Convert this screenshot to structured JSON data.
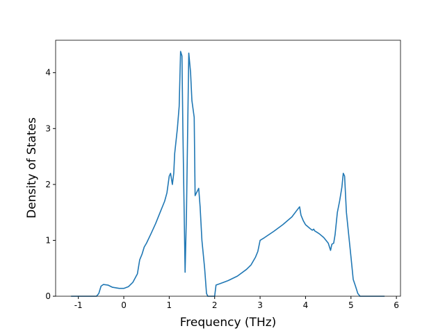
{
  "chart_data": {
    "type": "line",
    "x_label": "Frequency (THz)",
    "y_label": "Density of States",
    "xlim": [
      -1.5,
      6.09
    ],
    "ylim": [
      0,
      4.58
    ],
    "xticks": [
      -1,
      0,
      1,
      2,
      3,
      4,
      5,
      6
    ],
    "yticks": [
      0,
      1,
      2,
      3,
      4
    ],
    "series": [
      {
        "color": "#1f77b4",
        "x": [
          -1.16,
          -0.6,
          -0.55,
          -0.5,
          -0.45,
          -0.35,
          -0.25,
          -0.1,
          0,
          0.1,
          0.2,
          0.3,
          0.35,
          0.4,
          0.45,
          0.5,
          0.6,
          0.7,
          0.8,
          0.9,
          0.95,
          1.0,
          1.03,
          1.07,
          1.1,
          1.12,
          1.18,
          1.22,
          1.25,
          1.28,
          1.3,
          1.35,
          1.38,
          1.43,
          1.47,
          1.5,
          1.55,
          1.57,
          1.6,
          1.65,
          1.68,
          1.72,
          1.78,
          1.82,
          1.85,
          2.0,
          2.03,
          2.1,
          2.2,
          2.3,
          2.5,
          2.7,
          2.8,
          2.9,
          2.95,
          3.0,
          3.1,
          3.3,
          3.5,
          3.7,
          3.85,
          3.87,
          3.9,
          3.95,
          4.0,
          4.1,
          4.15,
          4.18,
          4.2,
          4.3,
          4.4,
          4.5,
          4.55,
          4.58,
          4.62,
          4.65,
          4.7,
          4.75,
          4.8,
          4.83,
          4.86,
          4.9,
          4.95,
          5.0,
          5.05,
          5.1,
          5.15,
          5.2,
          5.74
        ],
        "values": [
          0,
          0,
          0.05,
          0.18,
          0.21,
          0.2,
          0.16,
          0.14,
          0.14,
          0.17,
          0.25,
          0.4,
          0.65,
          0.75,
          0.88,
          0.95,
          1.12,
          1.3,
          1.5,
          1.7,
          1.85,
          2.15,
          2.2,
          2.0,
          2.2,
          2.55,
          3.0,
          3.4,
          4.38,
          4.3,
          3.0,
          0.43,
          1.5,
          4.35,
          4.0,
          3.5,
          3.2,
          1.8,
          1.85,
          1.93,
          1.6,
          1.0,
          0.5,
          0.05,
          0,
          0,
          0.2,
          0.22,
          0.25,
          0.28,
          0.36,
          0.48,
          0.56,
          0.7,
          0.8,
          1.0,
          1.05,
          1.16,
          1.28,
          1.42,
          1.58,
          1.6,
          1.45,
          1.35,
          1.28,
          1.21,
          1.18,
          1.2,
          1.17,
          1.12,
          1.05,
          0.95,
          0.82,
          0.93,
          0.95,
          1.1,
          1.5,
          1.7,
          1.95,
          2.2,
          2.15,
          1.5,
          1.1,
          0.7,
          0.3,
          0.18,
          0.05,
          0,
          0
        ]
      }
    ]
  }
}
